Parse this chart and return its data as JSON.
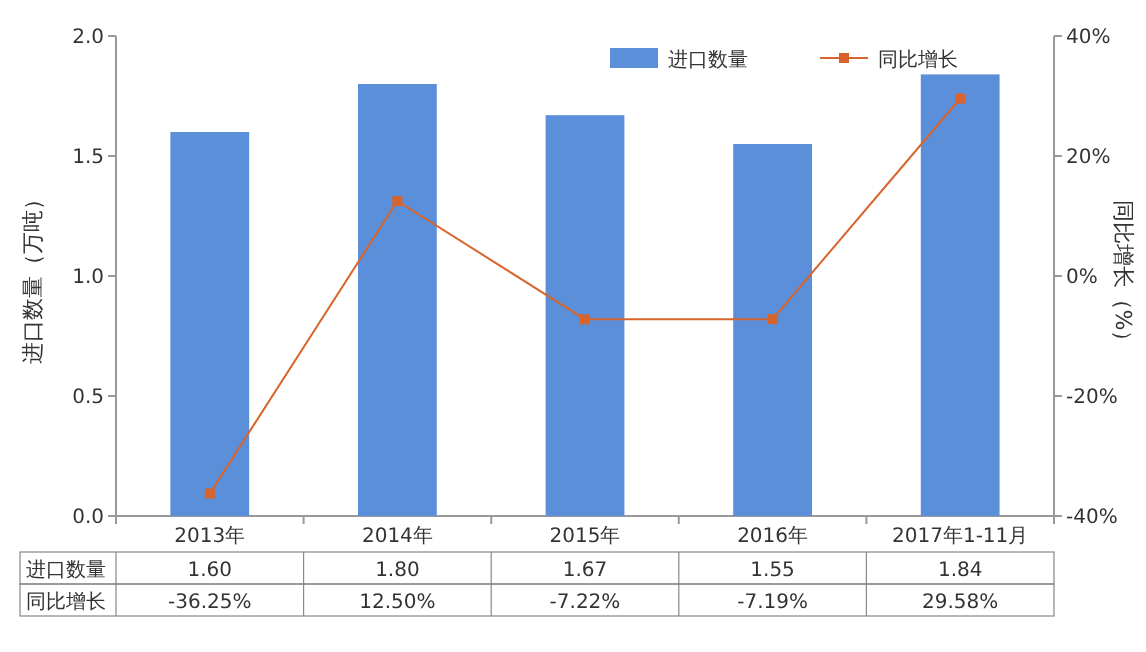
{
  "chart_data": {
    "type": "bar",
    "categories": [
      "2013年",
      "2014年",
      "2015年",
      "2016年",
      "2017年1-11月"
    ],
    "series": [
      {
        "name": "进口数量",
        "color": "#5b8fd9",
        "values": [
          1.6,
          1.8,
          1.67,
          1.55,
          1.84
        ],
        "value_labels": [
          "1.60",
          "1.80",
          "1.67",
          "1.55",
          "1.84"
        ]
      },
      {
        "name": "同比增长",
        "type": "line",
        "axis": "y2",
        "color": "#d9642b",
        "marker": "square",
        "values": [
          -36.25,
          12.5,
          -7.22,
          -7.19,
          29.58
        ],
        "value_labels": [
          "-36.25%",
          "12.50%",
          "-7.22%",
          "-7.19%",
          "29.58%"
        ]
      }
    ],
    "ylabel": "进口数量（万吨）",
    "y2label": "同比增长（%）",
    "ylim": [
      0,
      2.0
    ],
    "yticks": [
      {
        "value": 0,
        "label": "0.0"
      },
      {
        "value": 0.5,
        "label": "0.5"
      },
      {
        "value": 1.0,
        "label": "1.0"
      },
      {
        "value": 1.5,
        "label": "1.5"
      },
      {
        "value": 2.0,
        "label": "2.0"
      }
    ],
    "y2lim": [
      -40,
      40
    ],
    "y2ticks": [
      {
        "value": -40,
        "label": "-40%"
      },
      {
        "value": -20,
        "label": "-20%"
      },
      {
        "value": 0,
        "label": "0%"
      },
      {
        "value": 20,
        "label": "20%"
      },
      {
        "value": 40,
        "label": "40%"
      }
    ],
    "legend": "top right"
  }
}
